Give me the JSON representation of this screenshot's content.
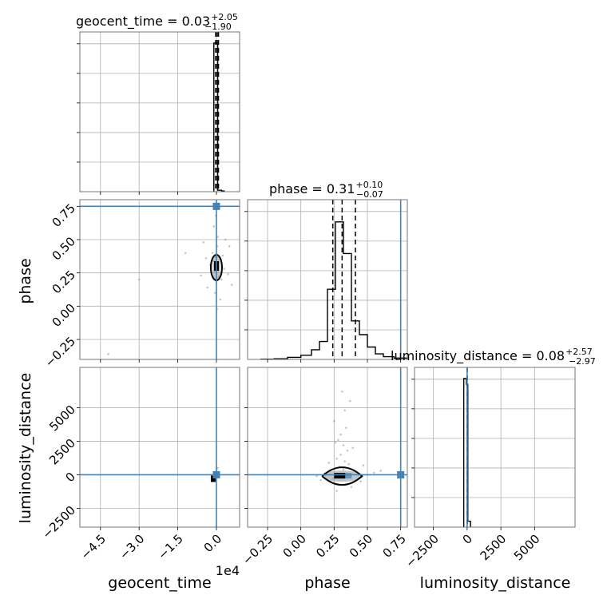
{
  "chart_data": {
    "type": "corner",
    "truth_color": "#4682b4",
    "hist_color": "#000000",
    "grid": true,
    "parameters": [
      {
        "name": "geocent_time",
        "axis_label": "geocent_time",
        "scale_label": "1e4",
        "title_main": "geocent_time = 0.03",
        "title_plus": "+2.05",
        "title_minus": "−1.90",
        "axis_range": [
          -5.3,
          0.9
        ],
        "ticks": [
          -4.5,
          -3.0,
          -1.5,
          0.0
        ],
        "tick_labels": [
          "−4.5",
          "−3.0",
          "−1.5",
          "0.0"
        ],
        "quantiles": [
          -0.03,
          0.03,
          0.08
        ]
      },
      {
        "name": "phase",
        "axis_label": "phase",
        "title_main": "phase = 0.31",
        "title_plus": "+0.10",
        "title_minus": "−0.07",
        "axis_range": [
          -0.4,
          0.8
        ],
        "ticks": [
          -0.25,
          0.0,
          0.25,
          0.5,
          0.75
        ],
        "tick_labels": [
          "−0.25",
          "0.00",
          "0.25",
          "0.50",
          "0.75"
        ],
        "truth": 0.75,
        "quantiles": [
          0.24,
          0.31,
          0.41
        ]
      },
      {
        "name": "luminosity_distance",
        "axis_label": "luminosity_distance",
        "title_main": "luminosity_distance = 0.08",
        "title_plus": "+2.57",
        "title_minus": "−2.97",
        "axis_range": [
          -3900,
          8000
        ],
        "ticks": [
          -2500,
          0,
          2500,
          5000
        ],
        "tick_labels": [
          "−2500",
          "0",
          "2500",
          "5000"
        ],
        "truth": 0,
        "quantiles": [
          -2.89,
          0.08,
          2.65
        ]
      }
    ],
    "diag_hist": [
      {
        "name": "geocent_time",
        "bins": [
          {
            "x0": -0.1,
            "x1": 0.05,
            "value": 100
          },
          {
            "x0": 0.05,
            "x1": 0.2,
            "value": 1
          },
          {
            "x0": 0.2,
            "x1": 0.3,
            "value": 0.5
          }
        ],
        "ymax": 100
      },
      {
        "name": "phase",
        "bins": [
          {
            "x0": -0.3,
            "x1": -0.2,
            "value": 0.2
          },
          {
            "x0": -0.2,
            "x1": -0.1,
            "value": 0.5
          },
          {
            "x0": -0.1,
            "x1": 0.0,
            "value": 1.5
          },
          {
            "x0": 0.0,
            "x1": 0.08,
            "value": 3
          },
          {
            "x0": 0.08,
            "x1": 0.14,
            "value": 7
          },
          {
            "x0": 0.14,
            "x1": 0.2,
            "value": 13
          },
          {
            "x0": 0.2,
            "x1": 0.26,
            "value": 51
          },
          {
            "x0": 0.26,
            "x1": 0.32,
            "value": 100
          },
          {
            "x0": 0.32,
            "x1": 0.38,
            "value": 77
          },
          {
            "x0": 0.38,
            "x1": 0.44,
            "value": 28
          },
          {
            "x0": 0.44,
            "x1": 0.5,
            "value": 18
          },
          {
            "x0": 0.5,
            "x1": 0.56,
            "value": 9
          },
          {
            "x0": 0.56,
            "x1": 0.62,
            "value": 4
          },
          {
            "x0": 0.62,
            "x1": 0.7,
            "value": 2
          },
          {
            "x0": 0.7,
            "x1": 0.8,
            "value": 1
          }
        ],
        "ymax": 108
      },
      {
        "name": "luminosity_distance",
        "bins": [
          {
            "x0": -250,
            "x1": -50,
            "value": 100
          },
          {
            "x0": -50,
            "x1": 50,
            "value": 96
          },
          {
            "x0": 50,
            "x1": 250,
            "value": 4
          }
        ],
        "ymax": 100
      }
    ],
    "scatter": {
      "phase_vs_geocent_time": [
        [
          0.0,
          0.29
        ],
        [
          -0.08,
          0.26
        ],
        [
          0.1,
          0.33
        ],
        [
          -0.15,
          0.4
        ],
        [
          0.2,
          0.2
        ],
        [
          0.03,
          0.45
        ],
        [
          -0.25,
          0.31
        ],
        [
          0.3,
          0.28
        ],
        [
          -0.05,
          0.1
        ],
        [
          0.05,
          0.52
        ],
        [
          -0.4,
          0.36
        ],
        [
          0.45,
          0.24
        ],
        [
          -3.0,
          0.2
        ],
        [
          -4.2,
          -0.36
        ],
        [
          -1.2,
          0.4
        ],
        [
          0.6,
          0.16
        ],
        [
          -0.6,
          0.23
        ],
        [
          0.15,
          0.05
        ],
        [
          -0.1,
          0.6
        ],
        [
          0.5,
          0.45
        ],
        [
          -0.35,
          0.14
        ],
        [
          0.25,
          0.38
        ],
        [
          0.02,
          -0.02
        ],
        [
          -0.02,
          0.68
        ],
        [
          0.35,
          0.5
        ],
        [
          -0.5,
          0.48
        ],
        [
          0.1,
          0.22
        ],
        [
          -0.12,
          0.34
        ],
        [
          0.07,
          0.3
        ],
        [
          -0.03,
          0.37
        ]
      ],
      "distance_vs_geocent_time": [
        [
          0.02,
          0
        ],
        [
          -0.1,
          -200
        ],
        [
          0.1,
          150
        ],
        [
          0.0,
          300
        ],
        [
          -0.05,
          -400
        ],
        [
          0.05,
          500
        ]
      ],
      "distance_vs_phase": [
        [
          0.31,
          0
        ],
        [
          0.27,
          1200
        ],
        [
          0.32,
          2200
        ],
        [
          0.3,
          3000
        ],
        [
          0.35,
          1800
        ],
        [
          0.26,
          -700
        ],
        [
          0.38,
          -900
        ],
        [
          0.29,
          600
        ],
        [
          0.33,
          4800
        ],
        [
          0.31,
          6200
        ],
        [
          0.28,
          2600
        ],
        [
          0.36,
          800
        ],
        [
          0.22,
          300
        ],
        [
          0.42,
          200
        ],
        [
          0.24,
          -300
        ],
        [
          0.45,
          -500
        ],
        [
          0.18,
          100
        ],
        [
          0.5,
          0
        ],
        [
          0.12,
          -100
        ],
        [
          0.55,
          150
        ],
        [
          0.34,
          3500
        ],
        [
          0.3,
          1500
        ],
        [
          0.27,
          -1200
        ],
        [
          0.39,
          2000
        ],
        [
          0.21,
          900
        ],
        [
          0.47,
          700
        ],
        [
          0.15,
          -400
        ],
        [
          0.6,
          300
        ],
        [
          0.25,
          4000
        ],
        [
          0.37,
          5500
        ],
        [
          0.32,
          400
        ],
        [
          0.29,
          -200
        ],
        [
          0.33,
          1000
        ],
        [
          0.26,
          2400
        ]
      ]
    }
  }
}
